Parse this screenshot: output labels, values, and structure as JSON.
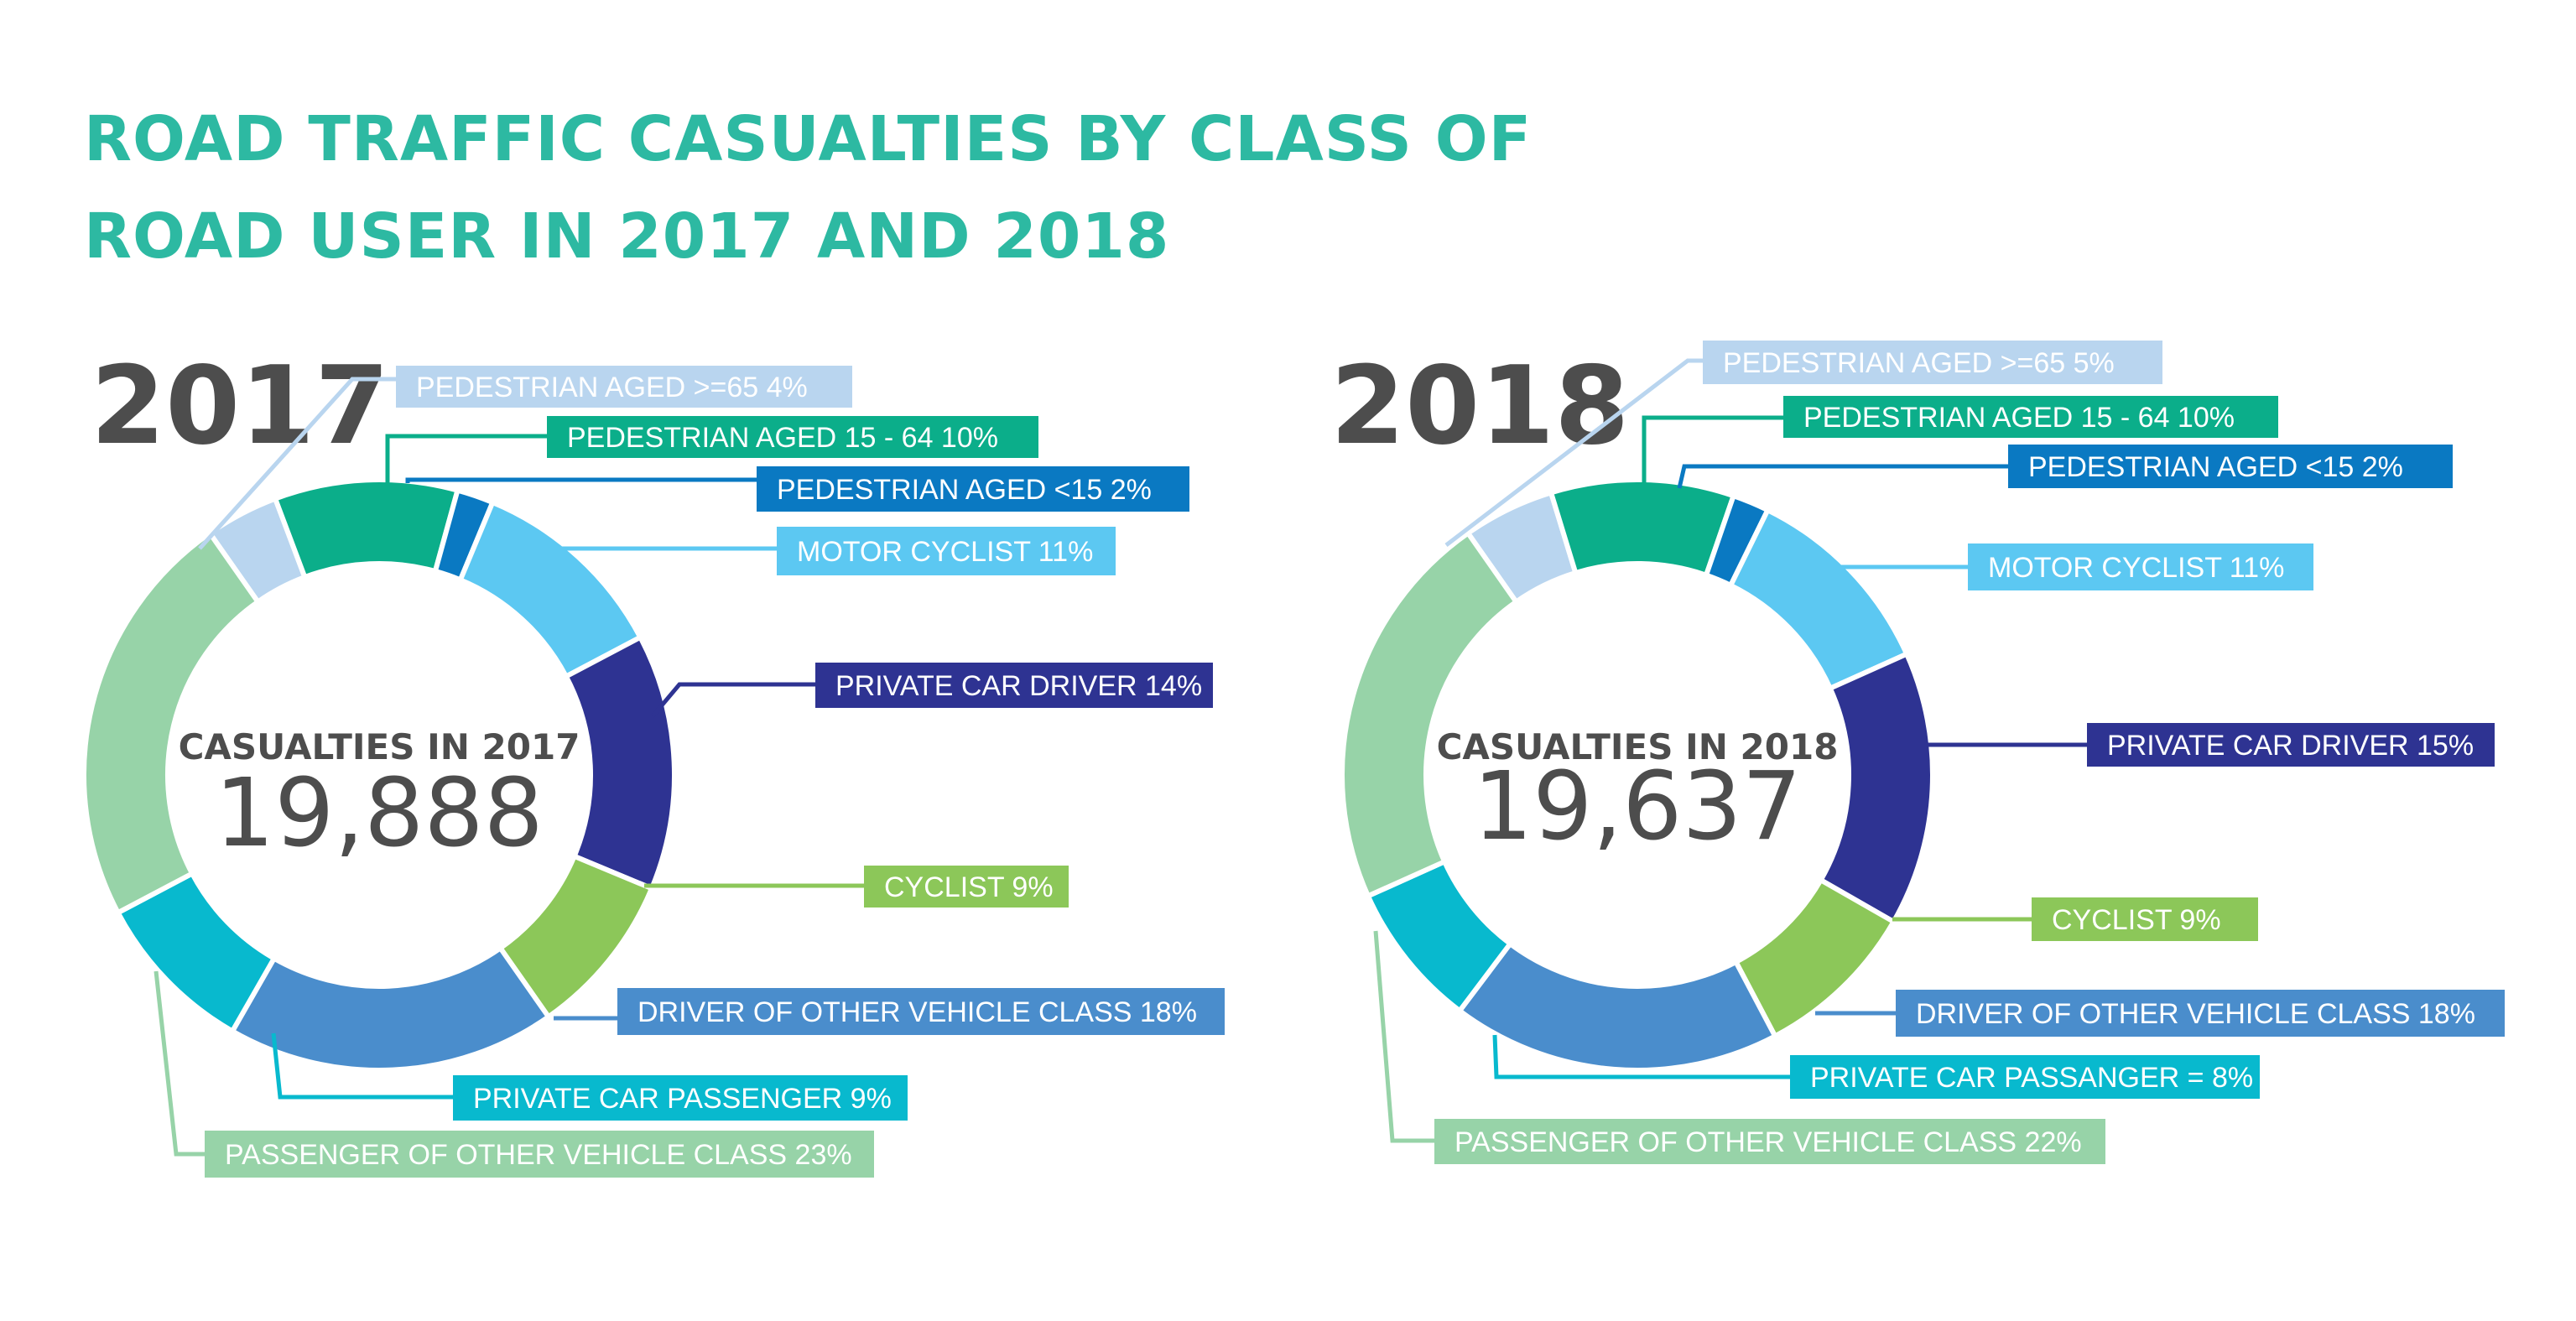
{
  "title": "ROAD TRAFFIC CASUALTIES BY CLASS OF ROAD USER IN 2017 AND 2018",
  "chart_data": [
    {
      "type": "pie",
      "style": "donut",
      "year_label": "2017",
      "center_label": "CASUALTIES IN 2017",
      "center_value": "19,888",
      "series": [
        {
          "name": "PEDESTRIAN AGED >=65",
          "value": 4,
          "label": "PEDESTRIAN AGED >=65 4%",
          "color": "#B9D5EF"
        },
        {
          "name": "PEDESTRIAN AGED 15 - 64",
          "value": 10,
          "label": "PEDESTRIAN AGED 15 - 64 10%",
          "color": "#0BAE8A"
        },
        {
          "name": "PEDESTRIAN AGED <15",
          "value": 2,
          "label": "PEDESTRIAN AGED <15 2%",
          "color": "#0A79C2"
        },
        {
          "name": "MOTOR CYCLIST",
          "value": 11,
          "label": "MOTOR CYCLIST 11%",
          "color": "#5CC8F2"
        },
        {
          "name": "PRIVATE CAR DRIVER",
          "value": 14,
          "label": "PRIVATE CAR DRIVER 14%",
          "color": "#2E3392"
        },
        {
          "name": "CYCLIST",
          "value": 9,
          "label": "CYCLIST 9%",
          "color": "#8CC759"
        },
        {
          "name": "DRIVER OF OTHER VEHICLE CLASS",
          "value": 18,
          "label": "DRIVER OF OTHER VEHICLE CLASS 18%",
          "color": "#4A8DCC"
        },
        {
          "name": "PRIVATE CAR PASSENGER",
          "value": 9,
          "label": "PRIVATE CAR PASSENGER 9%",
          "color": "#08B9CE"
        },
        {
          "name": "PASSENGER OF OTHER VEHICLE CLASS",
          "value": 23,
          "label": "PASSENGER OF OTHER VEHICLE CLASS 23%",
          "color": "#97D3A8"
        }
      ]
    },
    {
      "type": "pie",
      "style": "donut",
      "year_label": "2018",
      "center_label": "CASUALTIES IN 2018",
      "center_value": "19,637",
      "series": [
        {
          "name": "PEDESTRIAN AGED >=65",
          "value": 5,
          "label": "PEDESTRIAN AGED >=65 5%",
          "color": "#B9D5EF"
        },
        {
          "name": "PEDESTRIAN AGED 15 - 64",
          "value": 10,
          "label": "PEDESTRIAN AGED 15 - 64 10%",
          "color": "#0BAE8A"
        },
        {
          "name": "PEDESTRIAN AGED <15",
          "value": 2,
          "label": "PEDESTRIAN AGED <15 2%",
          "color": "#0A79C2"
        },
        {
          "name": "MOTOR CYCLIST",
          "value": 11,
          "label": "MOTOR CYCLIST 11%",
          "color": "#5CC8F2"
        },
        {
          "name": "PRIVATE CAR DRIVER",
          "value": 15,
          "label": "PRIVATE CAR DRIVER 15%",
          "color": "#2E3392"
        },
        {
          "name": "CYCLIST",
          "value": 9,
          "label": "CYCLIST 9%",
          "color": "#8CC759"
        },
        {
          "name": "DRIVER OF OTHER VEHICLE CLASS",
          "value": 18,
          "label": "DRIVER OF OTHER VEHICLE CLASS 18%",
          "color": "#4A8DCC"
        },
        {
          "name": "PRIVATE CAR PASSANGER",
          "value": 8,
          "label": "PRIVATE CAR PASSANGER = 8%",
          "color": "#08B9CE"
        },
        {
          "name": "PASSENGER OF OTHER VEHICLE CLASS",
          "value": 22,
          "label": "PASSENGER OF OTHER VEHICLE CLASS 22%",
          "color": "#97D3A8"
        }
      ]
    }
  ]
}
